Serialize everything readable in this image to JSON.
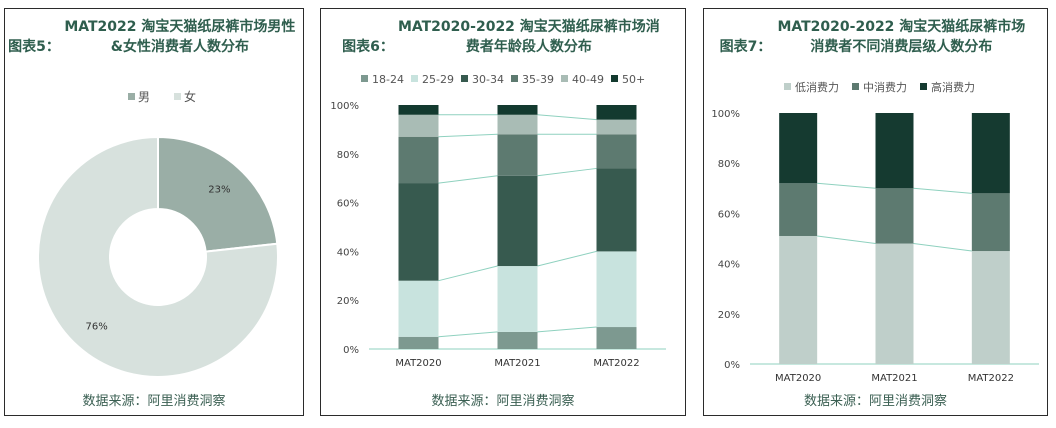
{
  "source_text": "数据来源：阿里消费洞察",
  "chart_data": [
    {
      "type": "pie",
      "title_prefix": "图表5：",
      "title": "MAT2022 淘宝天猫纸尿裤市场男性&女性消费者人数分布",
      "donut": true,
      "slices": [
        {
          "name": "男",
          "value": 23,
          "label": "23%",
          "color": "#9aaea6"
        },
        {
          "name": "女",
          "value": 76,
          "label": "76%",
          "color": "#d7e1dd"
        }
      ]
    },
    {
      "type": "bar",
      "stacked": true,
      "title_prefix": "图表6：",
      "title": "MAT2020-2022 淘宝天猫纸尿裤市场消费者年龄段人数分布",
      "categories": [
        "MAT2020",
        "MAT2021",
        "MAT2022"
      ],
      "ylim": [
        0,
        100
      ],
      "yticks": [
        "0%",
        "20%",
        "40%",
        "60%",
        "80%",
        "100%"
      ],
      "legend_position": "top",
      "series": [
        {
          "name": "18-24",
          "color": "#7d9990",
          "values": [
            5,
            7,
            9
          ]
        },
        {
          "name": "25-29",
          "color": "#c8e3de",
          "values": [
            23,
            27,
            31
          ]
        },
        {
          "name": "30-34",
          "color": "#375a4f",
          "values": [
            40,
            37,
            34
          ]
        },
        {
          "name": "35-39",
          "color": "#5d7a70",
          "values": [
            19,
            17,
            14
          ]
        },
        {
          "name": "40-49",
          "color": "#a9bcb5",
          "values": [
            9,
            8,
            6
          ]
        },
        {
          "name": "50+",
          "color": "#133a2f",
          "values": [
            4,
            4,
            6
          ]
        }
      ]
    },
    {
      "type": "bar",
      "stacked": true,
      "title_prefix": "图表7：",
      "title": "MAT2020-2022 淘宝天猫纸尿裤市场消费者不同消费层级人数分布",
      "categories": [
        "MAT2020",
        "MAT2021",
        "MAT2022"
      ],
      "ylim": [
        0,
        100
      ],
      "yticks": [
        "0%",
        "20%",
        "40%",
        "60%",
        "80%",
        "100%"
      ],
      "legend_position": "top",
      "series": [
        {
          "name": "低消费力",
          "color": "#bfcfca",
          "values": [
            51,
            48,
            45
          ]
        },
        {
          "name": "中消费力",
          "color": "#5d7a70",
          "values": [
            21,
            22,
            23
          ]
        },
        {
          "name": "高消费力",
          "color": "#153a30",
          "values": [
            28,
            30,
            32
          ]
        }
      ]
    }
  ]
}
